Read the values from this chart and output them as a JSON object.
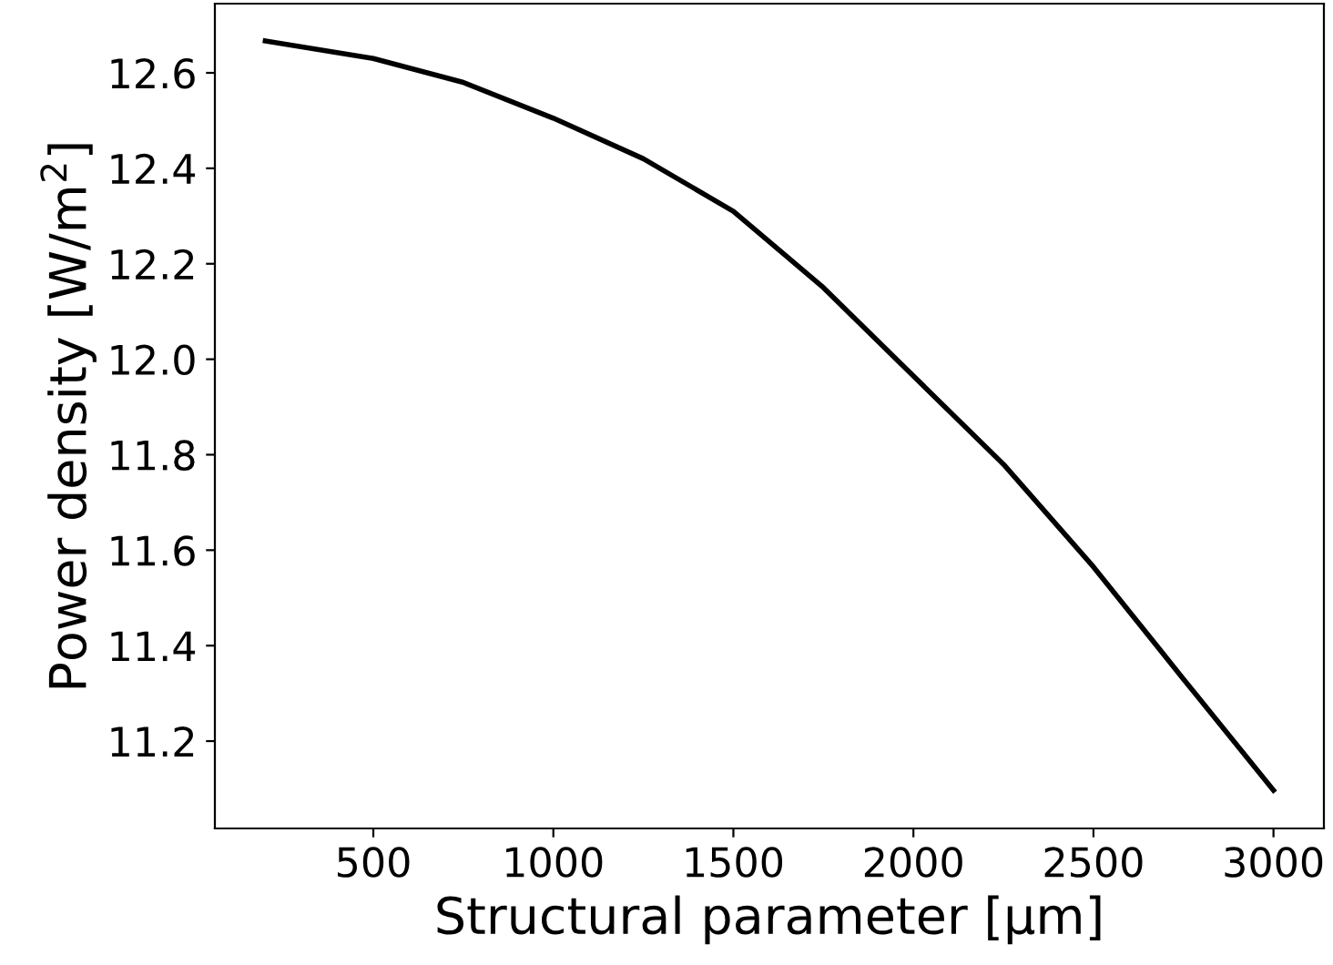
{
  "chart_data": {
    "type": "line",
    "xlabel": "Structural parameter [µm]",
    "ylabel": "Power density [W/m$^{2}$]",
    "x": [
      200,
      500,
      750,
      1000,
      1250,
      1500,
      1750,
      2000,
      2250,
      2500,
      2750,
      3000
    ],
    "series": [
      {
        "color": "#000000",
        "values": [
          12.667,
          12.63,
          12.58,
          12.505,
          12.42,
          12.31,
          12.15,
          11.965,
          11.78,
          11.565,
          11.33,
          11.097
        ]
      }
    ],
    "xlim": [
      60,
      3140
    ],
    "ylim": [
      11.017,
      12.745
    ],
    "xticks": [
      500,
      1000,
      1500,
      2000,
      2500,
      3000
    ],
    "yticks": [
      {
        "value": 11.2,
        "label": "11.2"
      },
      {
        "value": 11.4,
        "label": "11.4"
      },
      {
        "value": 11.6,
        "label": "11.6"
      },
      {
        "value": 11.8,
        "label": "11.8"
      },
      {
        "value": 12.0,
        "label": "12.0"
      },
      {
        "value": 12.2,
        "label": "12.2"
      },
      {
        "value": 12.4,
        "label": "12.4"
      },
      {
        "value": 12.6,
        "label": "12.6"
      }
    ],
    "grid": false,
    "marker": "none",
    "line_style": "solid"
  }
}
